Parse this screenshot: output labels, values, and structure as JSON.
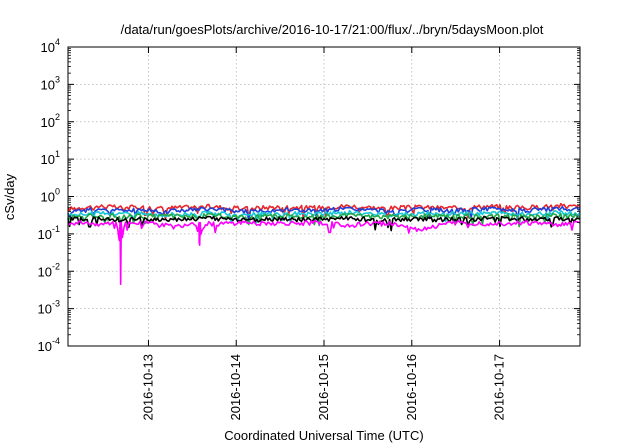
{
  "chart_data": {
    "type": "line",
    "title": "/data/run/goesPlots/archive/2016-10-17/21:00/flux/../bryn/5daysMoon.plot",
    "xlabel": "Coordinated Universal Time (UTC)",
    "ylabel": "cSv/day",
    "y_scale": "log",
    "ylim": [
      0.0001,
      10000
    ],
    "xlim": [
      "2016-10-12 02:00",
      "2016-10-17 22:00"
    ],
    "y_ticks": [
      {
        "base": "10",
        "exp": "-4",
        "value": 0.0001
      },
      {
        "base": "10",
        "exp": "-3",
        "value": 0.001
      },
      {
        "base": "10",
        "exp": "-2",
        "value": 0.01
      },
      {
        "base": "10",
        "exp": "-1",
        "value": 0.1
      },
      {
        "base": "10",
        "exp": "0",
        "value": 1
      },
      {
        "base": "10",
        "exp": "1",
        "value": 10
      },
      {
        "base": "10",
        "exp": "2",
        "value": 100
      },
      {
        "base": "10",
        "exp": "3",
        "value": 1000
      },
      {
        "base": "10",
        "exp": "4",
        "value": 10000
      }
    ],
    "x_tick_labels": [
      "2016-10-13",
      "2016-10-14",
      "2016-10-15",
      "2016-10-16",
      "2016-10-17"
    ],
    "grid": true,
    "colors": [
      "#e8262b",
      "#1f3fd6",
      "#16c6d6",
      "#22a84a",
      "#000000",
      "#ff00ff"
    ],
    "series": [
      {
        "color": "#e8262b",
        "base": 0.52,
        "x": [
          0,
          0.2,
          0.4,
          0.6,
          0.8,
          1.0,
          1.3,
          1.6,
          2.0,
          2.4,
          2.8,
          3.2,
          3.6,
          4.0,
          4.4,
          4.8,
          5.2,
          5.6,
          5.83
        ],
        "y": [
          0.46,
          0.52,
          0.55,
          0.5,
          0.53,
          0.48,
          0.51,
          0.54,
          0.47,
          0.53,
          0.5,
          0.56,
          0.48,
          0.52,
          0.49,
          0.55,
          0.5,
          0.57,
          0.53
        ]
      },
      {
        "color": "#1f3fd6",
        "base": 0.44,
        "x": [
          0,
          0.2,
          0.4,
          0.6,
          0.8,
          1.0,
          1.3,
          1.6,
          2.0,
          2.4,
          2.8,
          3.2,
          3.6,
          4.0,
          4.4,
          4.8,
          5.2,
          5.6,
          5.83
        ],
        "y": [
          0.4,
          0.44,
          0.46,
          0.42,
          0.45,
          0.41,
          0.43,
          0.46,
          0.4,
          0.45,
          0.42,
          0.47,
          0.41,
          0.44,
          0.42,
          0.47,
          0.43,
          0.48,
          0.45
        ]
      },
      {
        "color": "#16c6d6",
        "base": 0.35,
        "x": [
          0,
          0.2,
          0.4,
          0.6,
          0.8,
          1.0,
          1.3,
          1.6,
          2.0,
          2.4,
          2.8,
          3.2,
          3.6,
          4.0,
          4.4,
          4.8,
          5.2,
          5.6,
          5.83
        ],
        "y": [
          0.33,
          0.35,
          0.36,
          0.34,
          0.36,
          0.33,
          0.34,
          0.36,
          0.33,
          0.35,
          0.34,
          0.37,
          0.33,
          0.35,
          0.34,
          0.37,
          0.34,
          0.37,
          0.35
        ]
      },
      {
        "color": "#22a84a",
        "base": 0.3,
        "x": [
          0,
          0.2,
          0.4,
          0.6,
          0.8,
          1.0,
          1.3,
          1.6,
          2.0,
          2.4,
          2.8,
          3.2,
          3.6,
          4.0,
          4.4,
          4.8,
          5.2,
          5.6,
          5.83
        ],
        "y": [
          0.29,
          0.3,
          0.31,
          0.29,
          0.3,
          0.29,
          0.3,
          0.31,
          0.29,
          0.3,
          0.29,
          0.31,
          0.29,
          0.3,
          0.29,
          0.31,
          0.3,
          0.31,
          0.3
        ]
      },
      {
        "color": "#000000",
        "base": 0.25,
        "x": [
          0,
          0.2,
          0.4,
          0.6,
          0.8,
          1.0,
          1.3,
          1.6,
          2.0,
          2.4,
          2.8,
          3.2,
          3.6,
          4.0,
          4.4,
          4.8,
          5.2,
          5.6,
          5.83
        ],
        "y": [
          0.24,
          0.25,
          0.26,
          0.24,
          0.25,
          0.24,
          0.25,
          0.26,
          0.24,
          0.25,
          0.24,
          0.26,
          0.24,
          0.25,
          0.24,
          0.26,
          0.25,
          0.26,
          0.25
        ]
      },
      {
        "color": "#ff00ff",
        "base": 0.2,
        "x": [
          0,
          0.2,
          0.4,
          0.55,
          0.6,
          0.65,
          0.8,
          1.0,
          1.2,
          1.45,
          1.5,
          1.55,
          1.7,
          2.0,
          2.4,
          2.8,
          3.2,
          3.6,
          4.0,
          4.4,
          4.8,
          5.2,
          5.6,
          5.83
        ],
        "y": [
          0.19,
          0.2,
          0.18,
          0.2,
          0.0045,
          0.2,
          0.19,
          0.2,
          0.15,
          0.2,
          0.05,
          0.2,
          0.18,
          0.2,
          0.19,
          0.2,
          0.17,
          0.2,
          0.13,
          0.2,
          0.19,
          0.2,
          0.18,
          0.2
        ]
      }
    ]
  }
}
